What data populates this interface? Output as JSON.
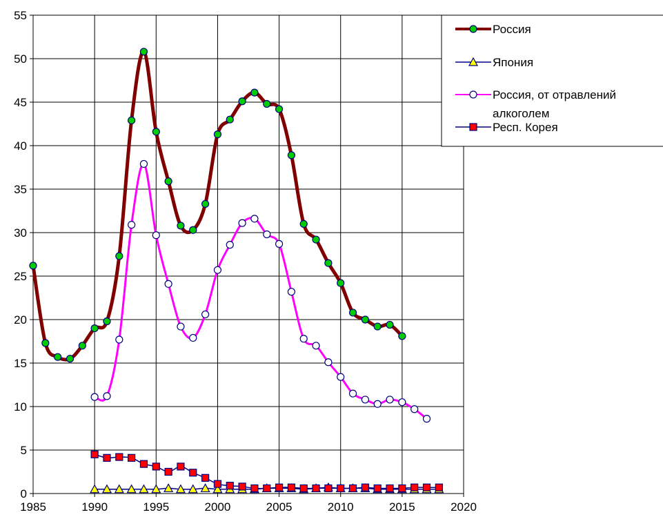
{
  "chart_data": {
    "type": "line",
    "title": "",
    "xlabel": "",
    "ylabel": "",
    "xlim": [
      1985,
      2020
    ],
    "ylim": [
      0,
      55
    ],
    "x_ticks": [
      1985,
      1990,
      1995,
      2000,
      2005,
      2010,
      2015,
      2020
    ],
    "y_ticks": [
      0,
      5,
      10,
      15,
      20,
      25,
      30,
      35,
      40,
      45,
      50,
      55
    ],
    "grid": true,
    "legend_position": "top-right",
    "legend_entries": [
      "Россия",
      "Япония",
      "Россия, от отравлений алкоголем",
      "Респ. Корея"
    ],
    "series": [
      {
        "name": "Россия",
        "color": "#800000",
        "marker": "circle",
        "marker_fill": "#00cc00",
        "points": [
          [
            1985,
            26.2
          ],
          [
            1986,
            17.3
          ],
          [
            1987,
            15.7
          ],
          [
            1988,
            15.5
          ],
          [
            1989,
            17.0
          ],
          [
            1990,
            19.0
          ],
          [
            1991,
            19.8
          ],
          [
            1992,
            27.3
          ],
          [
            1993,
            42.9
          ],
          [
            1994,
            50.8
          ],
          [
            1995,
            41.6
          ],
          [
            1996,
            35.9
          ],
          [
            1997,
            30.8
          ],
          [
            1998,
            30.3
          ],
          [
            1999,
            33.3
          ],
          [
            2000,
            41.3
          ],
          [
            2001,
            43.0
          ],
          [
            2002,
            45.1
          ],
          [
            2003,
            46.1
          ],
          [
            2004,
            44.8
          ],
          [
            2005,
            44.2
          ],
          [
            2006,
            38.9
          ],
          [
            2007,
            31.0
          ],
          [
            2008,
            29.2
          ],
          [
            2009,
            26.5
          ],
          [
            2010,
            24.2
          ],
          [
            2011,
            20.8
          ],
          [
            2012,
            20.0
          ],
          [
            2013,
            19.2
          ],
          [
            2014,
            19.4
          ],
          [
            2015,
            18.1
          ]
        ]
      },
      {
        "name": "Япония",
        "color": "#000080",
        "marker": "triangle",
        "marker_fill": "#ffff00",
        "points": [
          [
            1990,
            0.5
          ],
          [
            1991,
            0.5
          ],
          [
            1992,
            0.5
          ],
          [
            1993,
            0.5
          ],
          [
            1994,
            0.5
          ],
          [
            1995,
            0.5
          ],
          [
            1996,
            0.6
          ],
          [
            1997,
            0.5
          ],
          [
            1998,
            0.5
          ],
          [
            1999,
            0.6
          ],
          [
            2000,
            0.5
          ],
          [
            2001,
            0.5
          ],
          [
            2002,
            0.5
          ],
          [
            2003,
            0.5
          ],
          [
            2004,
            0.6
          ],
          [
            2005,
            0.6
          ],
          [
            2006,
            0.6
          ],
          [
            2007,
            0.5
          ],
          [
            2008,
            0.6
          ],
          [
            2009,
            0.7
          ],
          [
            2010,
            0.6
          ],
          [
            2011,
            0.6
          ],
          [
            2012,
            0.6
          ],
          [
            2013,
            0.5
          ],
          [
            2014,
            0.5
          ],
          [
            2015,
            0.5
          ],
          [
            2016,
            0.5
          ],
          [
            2017,
            0.5
          ],
          [
            2018,
            0.5
          ]
        ]
      },
      {
        "name": "Россия, от отравлений алкоголем",
        "color": "#ff00ff",
        "marker": "circle",
        "marker_fill": "#ffffff",
        "points": [
          [
            1990,
            11.1
          ],
          [
            1991,
            11.2
          ],
          [
            1992,
            17.7
          ],
          [
            1993,
            30.9
          ],
          [
            1994,
            37.9
          ],
          [
            1995,
            29.7
          ],
          [
            1996,
            24.1
          ],
          [
            1997,
            19.2
          ],
          [
            1998,
            17.9
          ],
          [
            1999,
            20.6
          ],
          [
            2000,
            25.7
          ],
          [
            2001,
            28.6
          ],
          [
            2002,
            31.1
          ],
          [
            2003,
            31.6
          ],
          [
            2004,
            29.8
          ],
          [
            2005,
            28.7
          ],
          [
            2006,
            23.2
          ],
          [
            2007,
            17.8
          ],
          [
            2008,
            17.0
          ],
          [
            2009,
            15.1
          ],
          [
            2010,
            13.4
          ],
          [
            2011,
            11.5
          ],
          [
            2012,
            10.8
          ],
          [
            2013,
            10.3
          ],
          [
            2014,
            10.8
          ],
          [
            2015,
            10.5
          ],
          [
            2016,
            9.7
          ],
          [
            2017,
            8.6
          ]
        ]
      },
      {
        "name": "Респ. Корея",
        "color": "#000080",
        "marker": "square",
        "marker_fill": "#ff0000",
        "points": [
          [
            1990,
            4.5
          ],
          [
            1991,
            4.1
          ],
          [
            1992,
            4.2
          ],
          [
            1993,
            4.1
          ],
          [
            1994,
            3.4
          ],
          [
            1995,
            3.1
          ],
          [
            1996,
            2.5
          ],
          [
            1997,
            3.1
          ],
          [
            1998,
            2.4
          ],
          [
            1999,
            1.8
          ],
          [
            2000,
            1.1
          ],
          [
            2001,
            0.9
          ],
          [
            2002,
            0.8
          ],
          [
            2003,
            0.6
          ],
          [
            2004,
            0.6
          ],
          [
            2005,
            0.7
          ],
          [
            2006,
            0.7
          ],
          [
            2007,
            0.6
          ],
          [
            2008,
            0.6
          ],
          [
            2009,
            0.6
          ],
          [
            2010,
            0.6
          ],
          [
            2011,
            0.6
          ],
          [
            2012,
            0.7
          ],
          [
            2013,
            0.6
          ],
          [
            2014,
            0.6
          ],
          [
            2015,
            0.6
          ],
          [
            2016,
            0.7
          ],
          [
            2017,
            0.7
          ],
          [
            2018,
            0.7
          ]
        ]
      }
    ]
  }
}
